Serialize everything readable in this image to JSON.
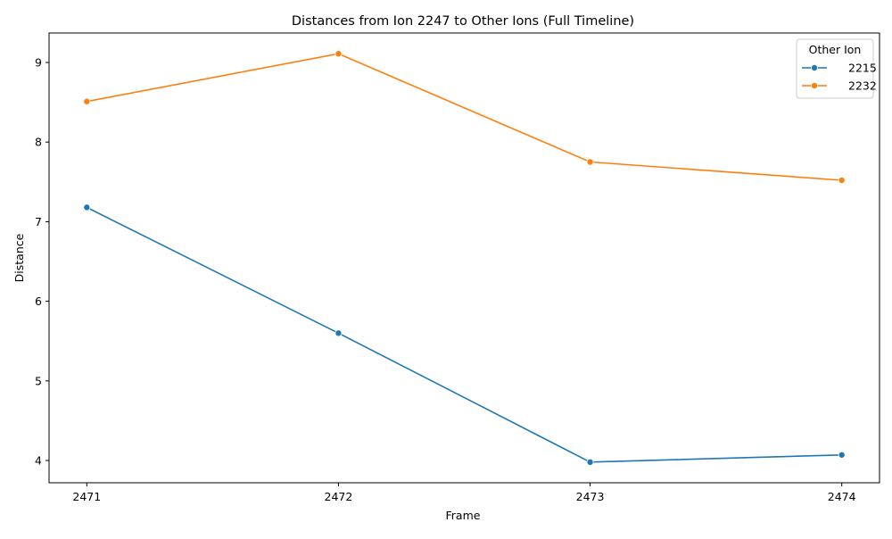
{
  "chart_data": {
    "type": "line",
    "title": "Distances from Ion 2247 to Other Ions (Full Timeline)",
    "xlabel": "Frame",
    "ylabel": "Distance",
    "x": [
      2471,
      2472,
      2473,
      2474
    ],
    "x_tick_labels": [
      "2471",
      "2472",
      "2473",
      "2474"
    ],
    "y_ticks": [
      4,
      5,
      6,
      7,
      8,
      9
    ],
    "y_tick_labels": [
      "4",
      "5",
      "6",
      "7",
      "8",
      "9"
    ],
    "ylim": [
      3.72,
      9.37
    ],
    "grid": false,
    "legend": {
      "title": "Other Ion",
      "placement": "top-right"
    },
    "series": [
      {
        "name": "2215",
        "color": "#1f77b4",
        "marker": "circle",
        "values": [
          7.18,
          5.6,
          3.98,
          4.07
        ]
      },
      {
        "name": "2232",
        "color": "#ff7f0e",
        "marker": "circle",
        "values": [
          8.51,
          9.11,
          7.75,
          7.52
        ]
      }
    ]
  }
}
